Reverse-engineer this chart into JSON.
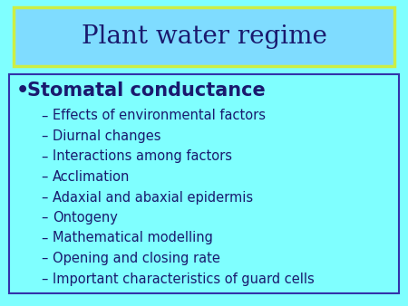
{
  "title": "Plant water regime",
  "title_fontsize": 20,
  "title_color": "#1a1a6e",
  "background_color": "#7fffff",
  "header_bg_color": "#7fdcff",
  "header_border_color": "#ccee44",
  "content_border_color": "#3333aa",
  "bullet_main": "Stomatal conductance",
  "bullet_main_fontsize": 15,
  "sub_items": [
    "Effects of environmental factors",
    "Diurnal changes",
    "Interactions among factors",
    "Acclimation",
    "Adaxial and abaxial epidermis",
    "Ontogeny",
    "Mathematical modelling",
    "Opening and closing rate",
    "Important characteristics of guard cells"
  ],
  "sub_fontsize": 10.5,
  "text_color": "#1a1a6e",
  "sub_text_color": "#1a1a6e"
}
